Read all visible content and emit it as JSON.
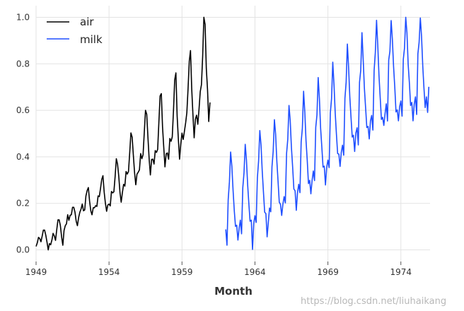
{
  "chart_data": {
    "type": "line",
    "xlabel": "Month",
    "ylabel": "",
    "xlim": [
      1949,
      1976
    ],
    "ylim": [
      -0.05,
      1.05
    ],
    "x_ticks": [
      1949,
      1954,
      1959,
      1964,
      1969,
      1974
    ],
    "y_ticks": [
      0.0,
      0.2,
      0.4,
      0.6,
      0.8,
      1.0
    ],
    "y_tick_labels": [
      "0.0",
      "0.2",
      "0.4",
      "0.6",
      "0.8",
      "1.0"
    ],
    "grid": true,
    "legend_position": "top-left",
    "series": [
      {
        "name": "air",
        "color": "#000000",
        "start_year": 1949,
        "months": 144,
        "values": [
          0.015,
          0.03,
          0.054,
          0.049,
          0.035,
          0.059,
          0.085,
          0.085,
          0.063,
          0.033,
          0.0,
          0.027,
          0.022,
          0.042,
          0.071,
          0.06,
          0.041,
          0.087,
          0.129,
          0.129,
          0.104,
          0.056,
          0.02,
          0.083,
          0.104,
          0.112,
          0.151,
          0.127,
          0.149,
          0.151,
          0.183,
          0.183,
          0.162,
          0.123,
          0.104,
          0.139,
          0.162,
          0.176,
          0.197,
          0.168,
          0.172,
          0.232,
          0.255,
          0.268,
          0.21,
          0.168,
          0.151,
          0.181,
          0.181,
          0.19,
          0.187,
          0.232,
          0.229,
          0.264,
          0.303,
          0.319,
          0.249,
          0.201,
          0.166,
          0.193,
          0.197,
          0.189,
          0.251,
          0.245,
          0.25,
          0.315,
          0.392,
          0.369,
          0.317,
          0.247,
          0.205,
          0.247,
          0.282,
          0.274,
          0.337,
          0.326,
          0.337,
          0.417,
          0.503,
          0.485,
          0.407,
          0.332,
          0.28,
          0.326,
          0.334,
          0.344,
          0.414,
          0.392,
          0.409,
          0.506,
          0.6,
          0.583,
          0.484,
          0.39,
          0.322,
          0.389,
          0.39,
          0.369,
          0.427,
          0.419,
          0.432,
          0.55,
          0.662,
          0.672,
          0.529,
          0.441,
          0.357,
          0.413,
          0.417,
          0.39,
          0.479,
          0.467,
          0.486,
          0.598,
          0.731,
          0.761,
          0.577,
          0.477,
          0.39,
          0.454,
          0.502,
          0.475,
          0.51,
          0.546,
          0.59,
          0.694,
          0.811,
          0.857,
          0.693,
          0.581,
          0.482,
          0.562,
          0.579,
          0.54,
          0.604,
          0.68,
          0.71,
          0.832,
          1.0,
          0.969,
          0.78,
          0.689,
          0.552,
          0.634
        ]
      },
      {
        "name": "milk",
        "color": "#1f4fff",
        "start_year": 1962,
        "months": 168,
        "values": [
          0.088,
          0.02,
          0.216,
          0.292,
          0.421,
          0.36,
          0.257,
          0.169,
          0.101,
          0.106,
          0.042,
          0.093,
          0.128,
          0.069,
          0.267,
          0.331,
          0.454,
          0.387,
          0.28,
          0.197,
          0.123,
          0.128,
          0.002,
          0.114,
          0.147,
          0.118,
          0.31,
          0.382,
          0.513,
          0.45,
          0.338,
          0.248,
          0.162,
          0.156,
          0.056,
          0.118,
          0.18,
          0.164,
          0.357,
          0.424,
          0.56,
          0.497,
          0.382,
          0.295,
          0.205,
          0.196,
          0.148,
          0.197,
          0.229,
          0.202,
          0.414,
          0.476,
          0.621,
          0.556,
          0.44,
          0.356,
          0.262,
          0.254,
          0.17,
          0.246,
          0.282,
          0.246,
          0.464,
          0.523,
          0.682,
          0.592,
          0.469,
          0.386,
          0.285,
          0.299,
          0.241,
          0.299,
          0.339,
          0.298,
          0.527,
          0.58,
          0.741,
          0.651,
          0.523,
          0.442,
          0.356,
          0.36,
          0.279,
          0.355,
          0.386,
          0.354,
          0.589,
          0.65,
          0.807,
          0.711,
          0.589,
          0.498,
          0.414,
          0.412,
          0.359,
          0.419,
          0.45,
          0.407,
          0.652,
          0.721,
          0.885,
          0.786,
          0.659,
          0.57,
          0.485,
          0.493,
          0.423,
          0.503,
          0.525,
          0.451,
          0.721,
          0.772,
          0.934,
          0.82,
          0.695,
          0.611,
          0.526,
          0.531,
          0.477,
          0.555,
          0.578,
          0.515,
          0.771,
          0.849,
          0.987,
          0.88,
          0.75,
          0.655,
          0.561,
          0.57,
          0.535,
          0.586,
          0.628,
          0.554,
          0.816,
          0.854,
          0.986,
          0.906,
          0.788,
          0.699,
          0.593,
          0.602,
          0.555,
          0.616,
          0.64,
          0.575,
          0.819,
          0.868,
          1.0,
          0.934,
          0.798,
          0.719,
          0.621,
          0.634,
          0.555,
          0.627,
          0.658,
          0.582,
          0.843,
          0.892,
          0.997,
          0.918,
          0.791,
          0.695,
          0.612,
          0.658,
          0.591,
          0.701
        ]
      }
    ]
  },
  "watermark": "https://blog.csdn.net/liuhaikang"
}
